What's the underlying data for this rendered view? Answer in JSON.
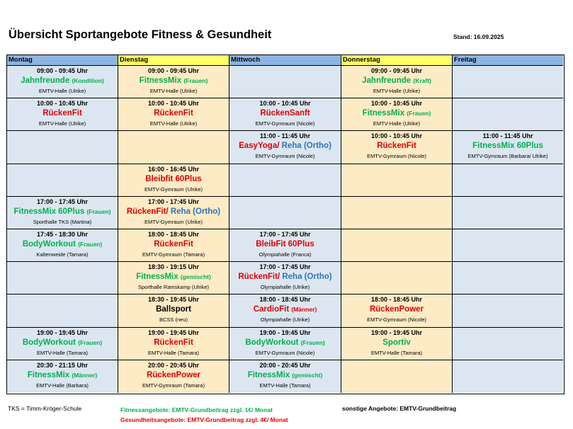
{
  "header": {
    "title": "Übersicht Sportangebote Fitness & Gesundheit",
    "stand": "Stand: 16.09.2025"
  },
  "table": {
    "columns": [
      {
        "name": "Montag",
        "header_color": "#8db4e2",
        "color": "#dce6f1"
      },
      {
        "name": "Dienstag",
        "header_color": "#ffff66",
        "color": "#fdebc6"
      },
      {
        "name": "Mittwoch",
        "header_color": "#8db4e2",
        "color": "#dce6f1"
      },
      {
        "name": "Donnerstag",
        "header_color": "#ffff66",
        "color": "#fdebc6"
      },
      {
        "name": "Freitag",
        "header_color": "#8db4e2",
        "color": "#dce6f1"
      }
    ],
    "rows": [
      [
        {
          "time": "09:00 - 09:45 Uhr",
          "name": [
            {
              "text": "Jahnfreunde",
              "color": "#00b050"
            },
            {
              "text": "(Kondition)",
              "color": "#00b050",
              "small": true
            }
          ],
          "location": "EMTV-Halle (Ulrike)"
        },
        {
          "time": "09:00 - 09:45 Uhr",
          "name": [
            {
              "text": "FitnessMix",
              "color": "#00b050"
            },
            {
              "text": "(Frauen)",
              "color": "#00b050",
              "small": true
            }
          ],
          "location": "EMTV-Halle (Ulrike)"
        },
        null,
        {
          "time": "09:00 - 09:45 Uhr",
          "name": [
            {
              "text": "Jahnfreunde",
              "color": "#00b050"
            },
            {
              "text": "(Kraft)",
              "color": "#00b050",
              "small": true
            }
          ],
          "location": "EMTV-Halle (Ulrike)"
        },
        null
      ],
      [
        {
          "time": "10:00 - 10:45 Uhr",
          "name": [
            {
              "text": "RückenFit",
              "color": "#e00000"
            }
          ],
          "location": "EMTV-Halle (Ulrike)"
        },
        {
          "time": "10:00 - 10:45 Uhr",
          "name": [
            {
              "text": "RückenFit",
              "color": "#e00000"
            }
          ],
          "location": "EMTV-Halle (Ulrike)"
        },
        {
          "time": "10:00 - 10:45 Uhr",
          "name": [
            {
              "text": "RückenSanft",
              "color": "#e00000"
            }
          ],
          "location": "EMTV-Gymraum (Nicole)"
        },
        {
          "time": "10:00 - 10:45 Uhr",
          "name": [
            {
              "text": "FitnessMix",
              "color": "#00b050"
            },
            {
              "text": "(Frauen)",
              "color": "#00b050",
              "small": true
            }
          ],
          "location": "EMTV-Halle (Ulrike)"
        },
        null
      ],
      [
        null,
        null,
        {
          "time": "11:00 - 11:45 Uhr",
          "name": [
            {
              "text": "EasyYoga/",
              "color": "#e00000"
            },
            {
              "text": "Reha (Ortho)",
              "color": "#2e75b6"
            }
          ],
          "location": "EMTV-Gymraum (Nicole)"
        },
        {
          "time": "10:00 - 10:45 Uhr",
          "name": [
            {
              "text": "RückenFit",
              "color": "#e00000"
            }
          ],
          "location": "EMTV-Gymraum (Nicole)"
        },
        {
          "time": "11:00 - 11:45 Uhr",
          "name": [
            {
              "text": "FitnessMix 60Plus",
              "color": "#00b050"
            }
          ],
          "location": "EMTV-Gymraum (Barbara/ Ulrike)"
        }
      ],
      [
        null,
        {
          "time": "16:00 - 16:45 Uhr",
          "name": [
            {
              "text": "Bleibfit 60Plus",
              "color": "#e00000"
            }
          ],
          "location": "EMTV-Gymraum (Ulrike)"
        },
        null,
        null,
        null
      ],
      [
        {
          "time": "17:00 - 17:45 Uhr",
          "name": [
            {
              "text": "FitnessMix 60Plus",
              "color": "#00b050"
            },
            {
              "text": "(Frauen)",
              "color": "#00b050",
              "small": true
            }
          ],
          "location": "Sporthalle TKS (Martina)"
        },
        {
          "time": "17:00 - 17:45 Uhr",
          "name": [
            {
              "text": "RückenFit/",
              "color": "#e00000"
            },
            {
              "text": "Reha (Ortho)",
              "color": "#2e75b6"
            }
          ],
          "location": "EMTV-Gymraum (Ulrike)"
        },
        null,
        null,
        null
      ],
      [
        {
          "time": "17:45 - 18:30 Uhr",
          "name": [
            {
              "text": "BodyWorkout",
              "color": "#00b050"
            },
            {
              "text": "(Frauen)",
              "color": "#00b050",
              "small": true
            }
          ],
          "location": "Kaltenweide (Tamara)"
        },
        {
          "time": "18:00 - 18:45 Uhr",
          "name": [
            {
              "text": "RückenFit",
              "color": "#e00000"
            }
          ],
          "location": "EMTV-Gymraum (Tamara)"
        },
        {
          "time": "17:00 - 17:45 Uhr",
          "name": [
            {
              "text": "BleibFit 60Plus",
              "color": "#e00000"
            }
          ],
          "location": "Olympiahalle (Franca)"
        },
        null,
        null
      ],
      [
        null,
        {
          "time": "18:30 - 19:15 Uhr",
          "name": [
            {
              "text": "FitnessMix",
              "color": "#00b050"
            },
            {
              "text": "(gemischt)",
              "color": "#00b050",
              "small": true
            }
          ],
          "location": "Sporthalle Ramskamp (Ulrike)"
        },
        {
          "time": "17:00 - 17:45 Uhr",
          "name": [
            {
              "text": "RückenFit/",
              "color": "#e00000"
            },
            {
              "text": "Reha (Ortho)",
              "color": "#2e75b6"
            }
          ],
          "location": "Olympiahalle (Ulrike)"
        },
        null,
        null
      ],
      [
        null,
        {
          "time": "18:30 - 19:45 Uhr",
          "name": [
            {
              "text": "Ballsport",
              "color": "#000000"
            }
          ],
          "location": "BCSS (neu)"
        },
        {
          "time": "18:00 - 18:45 Uhr",
          "name": [
            {
              "text": "CardioFit",
              "color": "#e00000"
            },
            {
              "text": "(Männer)",
              "color": "#e00000",
              "small": true
            }
          ],
          "location": "Olympiahalle (Ulrike)"
        },
        {
          "time": "18:00 - 18:45 Uhr",
          "name": [
            {
              "text": "RückenPower",
              "color": "#e00000"
            }
          ],
          "location": "EMTV-Gymraum (Nicole)"
        },
        null
      ],
      [
        {
          "time": "19:00 - 19:45 Uhr",
          "name": [
            {
              "text": "BodyWorkout",
              "color": "#00b050"
            },
            {
              "text": "(Frauen)",
              "color": "#00b050",
              "small": true
            }
          ],
          "location": "EMTV-Halle (Tamara)"
        },
        {
          "time": "19:00 - 19:45 Uhr",
          "name": [
            {
              "text": "RückenFit",
              "color": "#e00000"
            }
          ],
          "location": "EMTV-Halle (Tamara)"
        },
        {
          "time": "19:00 - 19:45 Uhr",
          "name": [
            {
              "text": "BodyWorkout",
              "color": "#00b050"
            },
            {
              "text": "(Frauen)",
              "color": "#00b050",
              "small": true
            }
          ],
          "location": "EMTV-Gymraum (Nicole)"
        },
        {
          "time": "19:00 - 19:45 Uhr",
          "name": [
            {
              "text": "Sportiv",
              "color": "#00b050"
            }
          ],
          "location": "EMTV-Halle (Tamara)"
        },
        null
      ],
      [
        {
          "time": "20:30 - 21:15 Uhr",
          "name": [
            {
              "text": "FitnessMix",
              "color": "#00b050"
            },
            {
              "text": "(Männer)",
              "color": "#00b050",
              "small": true
            }
          ],
          "location": "EMTV-Halle (Barbara)"
        },
        {
          "time": "20:00 - 20:45 Uhr",
          "name": [
            {
              "text": "RückenPower",
              "color": "#e00000"
            }
          ],
          "location": "EMTV-Gymraum (Tamara)"
        },
        {
          "time": "20:00 - 20:45 Uhr",
          "name": [
            {
              "text": "FitnessMix",
              "color": "#00b050"
            },
            {
              "text": "(gemischt)",
              "color": "#00b050",
              "small": true
            }
          ],
          "location": "EMTV-Halle (Tamara)"
        },
        null,
        null
      ]
    ]
  },
  "footer": {
    "note": "TKS = Timm-Kröger-Schule",
    "pricing": [
      {
        "text": "Fitnessangebote: EMTV-Grundbeitrag zzgl. 1€/ Monat",
        "color": "#00b050"
      },
      {
        "text": "Gesundheitsangebote: EMTV-Grundbeitrag zzgl. 4€/ Monat",
        "color": "#e00000"
      }
    ],
    "other": "sonstige Angebote: EMTV-Grundbeitrag"
  }
}
